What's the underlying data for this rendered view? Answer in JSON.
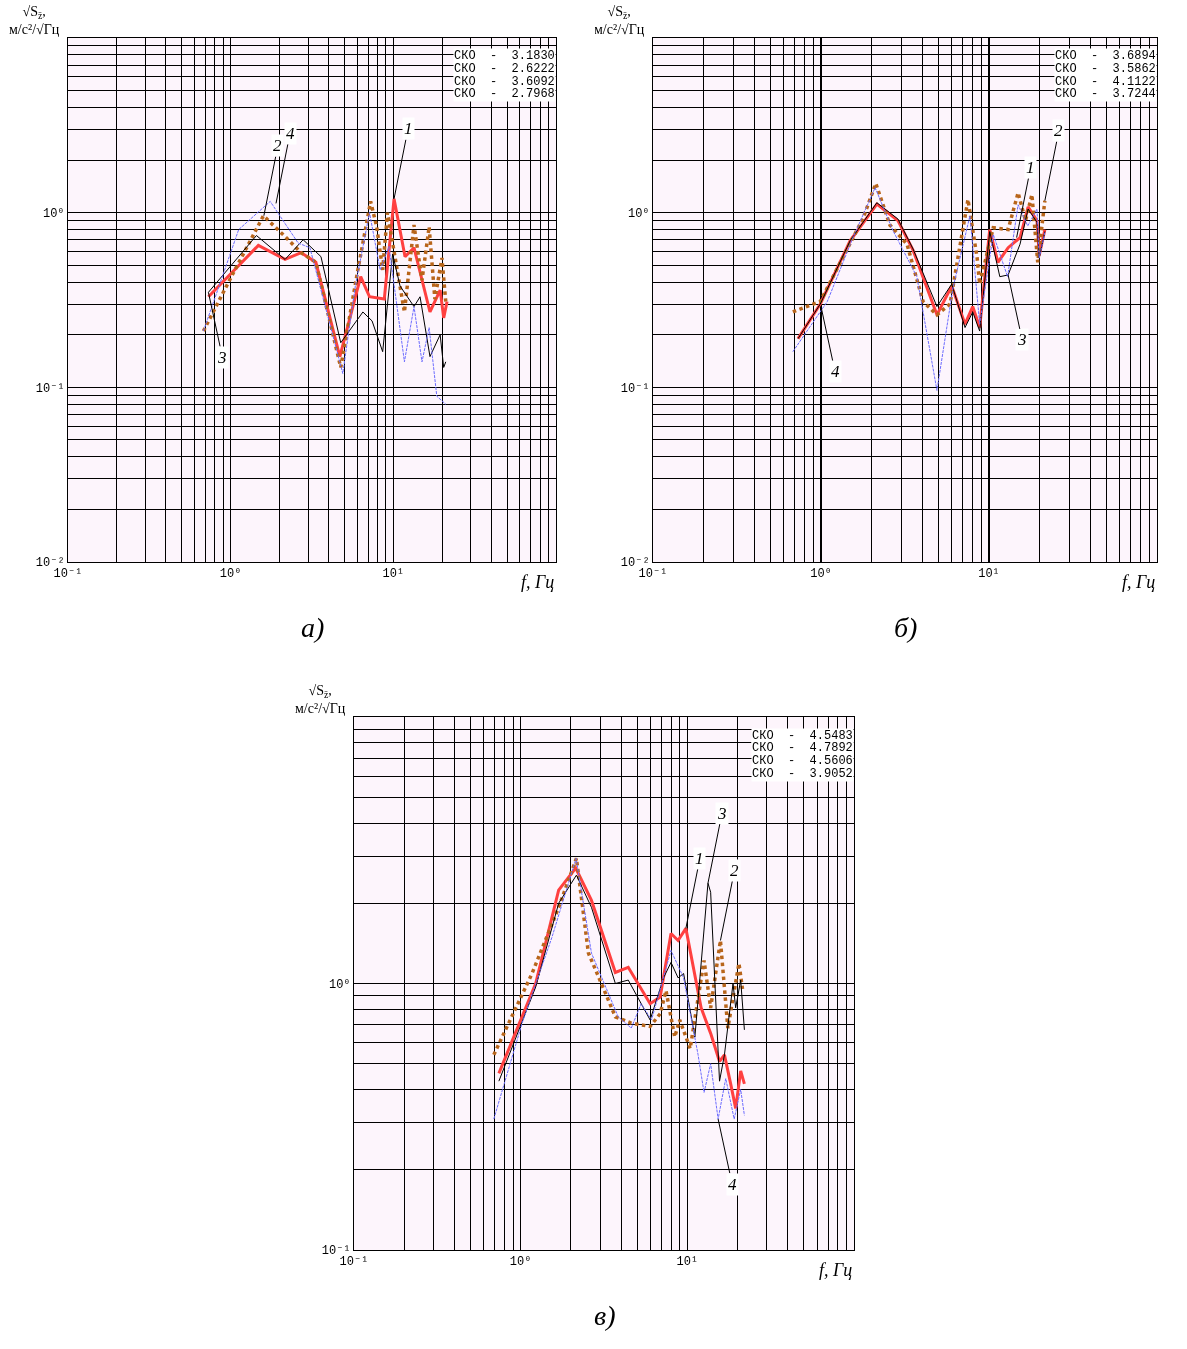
{
  "chart_data": [
    {
      "type": "line",
      "title": "а)",
      "xlabel": "f, Гц",
      "ylabel": "√S$_{z̈}$, м/с²/√Гц",
      "log": "xy",
      "grid": true,
      "xlim": [
        0.1,
        100
      ],
      "ylim": [
        0.01,
        10
      ],
      "xticks": [
        {
          "value": 0.1,
          "label": "10⁻¹"
        },
        {
          "value": 1,
          "label": "10⁰"
        },
        {
          "value": 10,
          "label": "10¹"
        }
      ],
      "yticks": [
        {
          "value": 0.01,
          "label": "10⁻²"
        },
        {
          "value": 0.1,
          "label": "10⁻¹"
        },
        {
          "value": 1,
          "label": "10⁰"
        }
      ],
      "series": [
        {
          "color": "#ff4040",
          "line_style": "solid",
          "x": [
            0.73,
            1.48,
            2.16,
            2.71,
            3.34,
            4.69,
            6.3,
            7.14,
            8.8,
            10.1,
            11.8,
            13.4,
            16.8,
            19.4,
            20.4,
            21.4
          ],
          "values": [
            0.33,
            0.65,
            0.54,
            0.59,
            0.52,
            0.15,
            0.43,
            0.33,
            0.32,
            1.2,
            0.56,
            0.63,
            0.27,
            0.36,
            0.25,
            0.31
          ]
        },
        {
          "color": "#b8651b",
          "line_style": "dotted",
          "x": [
            0.68,
            0.97,
            1.59,
            2.16,
            2.71,
            3.34,
            4.75,
            6.0,
            7.25,
            7.9,
            8.6,
            9.2,
            11.7,
            13.4,
            15.0,
            16.6,
            18.0,
            19.9,
            21
          ],
          "values": [
            0.21,
            0.4,
            0.96,
            0.73,
            0.59,
            0.52,
            0.13,
            0.45,
            1.16,
            0.83,
            0.47,
            1.0,
            0.27,
            0.85,
            0.41,
            0.83,
            0.32,
            0.55,
            0.31
          ]
        },
        {
          "color": "#000000",
          "line_style": "solid",
          "x": [
            0.73,
            1.44,
            2.16,
            2.79,
            3.59,
            4.75,
            6.5,
            7.4,
            8.6,
            9.9,
            11.0,
            13.4,
            14.6,
            16.8,
            19.4,
            20.4,
            21
          ],
          "values": [
            0.35,
            0.74,
            0.54,
            0.7,
            0.56,
            0.18,
            0.27,
            0.24,
            0.16,
            0.58,
            0.38,
            0.29,
            0.33,
            0.15,
            0.2,
            0.13,
            0.14
          ]
        },
        {
          "color": "#6c6cff",
          "line_style": "dashed",
          "x": [
            0.68,
            1.12,
            1.75,
            2.6,
            3.07,
            4.89,
            5.84,
            7.14,
            8.3,
            9.4,
            11.7,
            13.4,
            15.0,
            16.6,
            18.5,
            21
          ],
          "values": [
            0.21,
            0.8,
            1.16,
            0.67,
            0.63,
            0.12,
            0.38,
            1.0,
            0.47,
            0.64,
            0.14,
            0.29,
            0.14,
            0.22,
            0.089,
            0.08
          ]
        }
      ],
      "annotations": [
        "СКО  -  3.1830",
        "СКО  -  2.6222",
        "СКО  -  3.6092",
        "СКО  -  2.7968",
        {
          "text": "3",
          "x": 0.73,
          "y": 0.35
        },
        {
          "text": "2",
          "x": 1.6,
          "y": 0.96
        },
        {
          "text": "4",
          "x": 1.9,
          "y": 1.13
        },
        {
          "text": "1",
          "x": 10.1,
          "y": 1.2
        }
      ]
    },
    {
      "type": "line",
      "title": "б)",
      "xlabel": "f, Гц",
      "ylabel": "√S$_{z̈}$, м/с²/√Гц",
      "log": "xy",
      "grid": true,
      "xlim": [
        0.1,
        100
      ],
      "ylim": [
        0.01,
        10
      ],
      "xticks": [
        {
          "value": 0.1,
          "label": "10⁻¹"
        },
        {
          "value": 1,
          "label": "10⁰"
        },
        {
          "value": 10,
          "label": "10¹"
        }
      ],
      "yticks": [
        {
          "value": 0.01,
          "label": "10⁻²"
        },
        {
          "value": 0.1,
          "label": "10⁻¹"
        },
        {
          "value": 1,
          "label": "10⁰"
        }
      ],
      "series": [
        {
          "color": "#ff4040",
          "line_style": "solid",
          "x": [
            0.73,
            0.99,
            1.49,
            2.15,
            2.87,
            3.53,
            4.9,
            6.0,
            7.2,
            8.0,
            8.8,
            10.1,
            11.3,
            13.0,
            15.3,
            17.1,
            19.3,
            19.9,
            21.5
          ],
          "values": [
            0.19,
            0.3,
            0.69,
            1.12,
            0.9,
            0.61,
            0.26,
            0.38,
            0.23,
            0.29,
            0.22,
            0.8,
            0.52,
            0.63,
            0.72,
            1.08,
            0.9,
            0.57,
            0.8
          ]
        },
        {
          "color": "#b8651b",
          "line_style": "dotted",
          "x": [
            0.68,
            0.99,
            1.78,
            2.12,
            2.57,
            3.25,
            4.05,
            4.9,
            5.86,
            6.9,
            7.5,
            8.5,
            8.8,
            10.6,
            13.0,
            14.9,
            16.5,
            18.0,
            19.5,
            21.5
          ],
          "values": [
            0.27,
            0.31,
            0.93,
            1.47,
            0.85,
            0.66,
            0.31,
            0.26,
            0.3,
            0.75,
            1.19,
            0.55,
            0.39,
            0.82,
            0.8,
            1.3,
            0.9,
            1.27,
            0.52,
            1.17
          ]
        },
        {
          "color": "#000000",
          "line_style": "solid",
          "x": [
            0.73,
            0.99,
            1.49,
            2.15,
            2.87,
            3.53,
            4.9,
            6.0,
            7.2,
            8.0,
            8.8,
            10.1,
            11.6,
            13.0,
            15.3,
            17.1,
            19.3,
            19.9,
            21.5
          ],
          "values": [
            0.19,
            0.3,
            0.69,
            1.14,
            0.92,
            0.62,
            0.29,
            0.39,
            0.22,
            0.27,
            0.21,
            0.78,
            0.43,
            0.44,
            0.66,
            1.05,
            0.88,
            0.55,
            0.78
          ]
        },
        {
          "color": "#6c6cff",
          "line_style": "dashed",
          "x": [
            0.68,
            1.09,
            1.55,
            2.1,
            2.68,
            3.72,
            4.9,
            6.1,
            7.7,
            8.8,
            10.6,
            12.9,
            14.9,
            17.0,
            19.3,
            19.9,
            21.5
          ],
          "values": [
            0.16,
            0.31,
            0.72,
            1.39,
            0.79,
            0.43,
            0.096,
            0.37,
            0.96,
            0.23,
            0.75,
            0.43,
            1.11,
            0.84,
            1.05,
            0.55,
            0.77
          ]
        }
      ],
      "annotations": [
        "СКО  -  3.6894",
        "СКО  -  3.5862",
        "СКО  -  4.1122",
        "СКО  -  3.7244",
        {
          "text": "1",
          "x": 14.6,
          "y": 0.72
        },
        {
          "text": "2",
          "x": 21.5,
          "y": 1.17
        },
        {
          "text": "3",
          "x": 13.0,
          "y": 0.44
        },
        {
          "text": "4",
          "x": 1.0,
          "y": 0.29
        }
      ]
    },
    {
      "type": "line",
      "title": "в)",
      "xlabel": "f, Гц",
      "ylabel": "√S$_{z̈}$, м/с²/√Гц",
      "log": "xy",
      "grid": true,
      "xlim": [
        0.1,
        100
      ],
      "ylim": [
        0.1,
        10
      ],
      "xticks": [
        {
          "value": 0.1,
          "label": "10⁻¹"
        },
        {
          "value": 1,
          "label": "10⁰"
        },
        {
          "value": 10,
          "label": "10¹"
        }
      ],
      "yticks": [
        {
          "value": 0.1,
          "label": "10⁻¹"
        },
        {
          "value": 1,
          "label": "10⁰"
        }
      ],
      "series": [
        {
          "color": "#ff4040",
          "line_style": "solid",
          "x": [
            0.74,
            1.23,
            1.69,
            2.14,
            2.66,
            3.7,
            4.42,
            5.98,
            6.87,
            7.98,
            8.8,
            9.8,
            12.1,
            13.8,
            15.6,
            16.7,
            18.2,
            19.5,
            20.9,
            22
          ],
          "values": [
            0.46,
            1.0,
            2.24,
            2.71,
            2.05,
            1.1,
            1.15,
            0.84,
            0.89,
            1.54,
            1.45,
            1.61,
            0.81,
            0.65,
            0.51,
            0.54,
            0.42,
            0.34,
            0.47,
            0.42
          ]
        },
        {
          "color": "#b8651b",
          "line_style": "dotted",
          "x": [
            0.69,
            1.17,
            1.69,
            2.16,
            2.55,
            2.95,
            3.7,
            4.61,
            5.98,
            6.87,
            7.45,
            8.4,
            9.0,
            10.4,
            12.6,
            13.8,
            15.8,
            17.5,
            20.4,
            21.5
          ],
          "values": [
            0.54,
            1.09,
            1.93,
            2.95,
            1.3,
            1.05,
            0.75,
            0.71,
            0.69,
            0.77,
            0.94,
            0.63,
            0.73,
            0.57,
            1.22,
            0.81,
            1.45,
            0.68,
            1.19,
            0.94
          ]
        },
        {
          "color": "#000000",
          "line_style": "solid",
          "x": [
            0.74,
            1.23,
            1.69,
            2.16,
            2.66,
            3.7,
            4.42,
            5.98,
            7.2,
            7.98,
            8.8,
            9.5,
            11.1,
            13.3,
            13.8,
            15.6,
            16.7,
            18.8,
            19.5,
            20.9,
            22
          ],
          "values": [
            0.43,
            0.97,
            2.0,
            2.55,
            1.93,
            1.0,
            1.03,
            0.73,
            1.05,
            1.2,
            1.05,
            1.09,
            0.63,
            2.38,
            2.2,
            0.43,
            0.54,
            1.0,
            0.81,
            1.03,
            0.67
          ]
        },
        {
          "color": "#6c6cff",
          "line_style": "dashed",
          "x": [
            0.69,
            1.02,
            1.54,
            2.15,
            2.66,
            3.85,
            4.61,
            5.28,
            6.1,
            7.98,
            9.5,
            11.6,
            12.6,
            13.8,
            15.3,
            17.0,
            19.1,
            20.9,
            22
          ],
          "values": [
            0.31,
            0.71,
            1.49,
            2.95,
            1.3,
            0.75,
            0.68,
            0.84,
            0.73,
            1.33,
            1.05,
            0.54,
            0.39,
            0.5,
            0.31,
            0.44,
            0.31,
            0.4,
            0.32
          ]
        }
      ],
      "annotations": [
        "СКО  -  4.5483",
        "СКО  -  4.7892",
        "СКО  -  4.5606",
        "СКО  -  3.9052",
        {
          "text": "1",
          "x": 9.8,
          "y": 1.61
        },
        {
          "text": "3",
          "x": 13.3,
          "y": 2.38
        },
        {
          "text": "2",
          "x": 15.8,
          "y": 1.45
        },
        {
          "text": "4",
          "x": 15.3,
          "y": 0.31
        }
      ]
    }
  ]
}
